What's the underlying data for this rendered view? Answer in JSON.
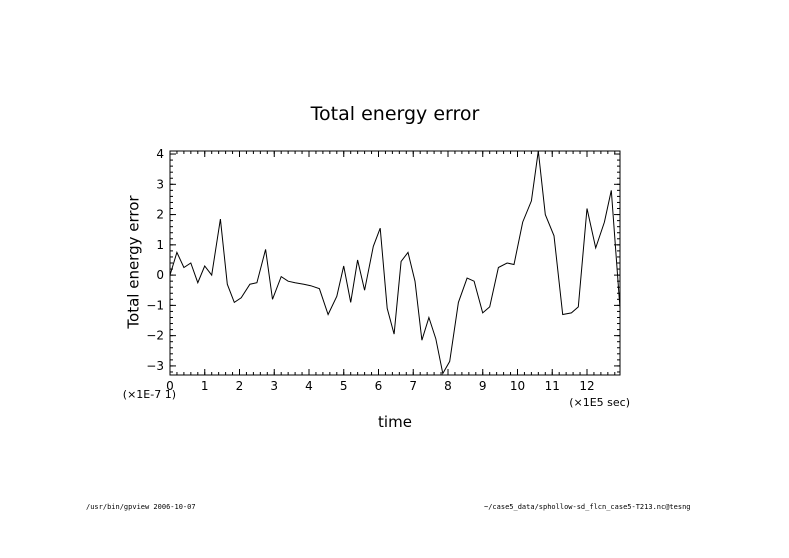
{
  "chart_data": {
    "type": "line",
    "title": "Total energy error",
    "xlabel": "time",
    "ylabel": "Total energy error",
    "x_scale_label": "(×1E5 sec)",
    "y_scale_label": "(×1E-7 1)",
    "xlim": [
      0,
      12.95
    ],
    "ylim": [
      -3.3,
      4.1
    ],
    "xticks": [
      0,
      1,
      2,
      3,
      4,
      5,
      6,
      7,
      8,
      9,
      10,
      11,
      12
    ],
    "yticks": [
      -3,
      -2,
      -1,
      0,
      1,
      2,
      3,
      4
    ],
    "grid": false,
    "series": [
      {
        "x": [
          0,
          0.2,
          0.4,
          0.6,
          0.8,
          1.0,
          1.2,
          1.45,
          1.65,
          1.85,
          2.05,
          2.3,
          2.5,
          2.75,
          2.95,
          3.2,
          3.4,
          3.6,
          3.85,
          4.05,
          4.3,
          4.55,
          4.8,
          5.0,
          5.2,
          5.4,
          5.6,
          5.85,
          6.05,
          6.25,
          6.45,
          6.65,
          6.85,
          7.05,
          7.25,
          7.45,
          7.65,
          7.85,
          8.05,
          8.3,
          8.55,
          8.75,
          9.0,
          9.2,
          9.45,
          9.7,
          9.9,
          10.15,
          10.4,
          10.6,
          10.8,
          11.05,
          11.3,
          11.55,
          11.75,
          12.0,
          12.25,
          12.5,
          12.7,
          12.95
        ],
        "y": [
          0.0,
          0.75,
          0.25,
          0.4,
          -0.25,
          0.3,
          0.0,
          1.85,
          -0.3,
          -0.9,
          -0.75,
          -0.3,
          -0.25,
          0.85,
          -0.8,
          -0.05,
          -0.2,
          -0.25,
          -0.3,
          -0.35,
          -0.45,
          -1.3,
          -0.7,
          0.3,
          -0.9,
          0.5,
          -0.5,
          0.95,
          1.55,
          -1.1,
          -1.95,
          0.45,
          0.75,
          -0.2,
          -2.15,
          -1.4,
          -2.1,
          -3.25,
          -2.85,
          -0.9,
          -0.1,
          -0.2,
          -1.25,
          -1.05,
          0.25,
          0.4,
          0.35,
          1.75,
          2.45,
          4.1,
          2.0,
          1.3,
          -1.3,
          -1.25,
          -1.05,
          2.2,
          0.9,
          1.75,
          2.8,
          -1.1
        ]
      }
    ]
  },
  "footer": {
    "left": "/usr/bin/gpview  2006-10-07",
    "right": "~/case5_data/sphollow-sd_flcn_case5-T213.nc@tesng"
  }
}
